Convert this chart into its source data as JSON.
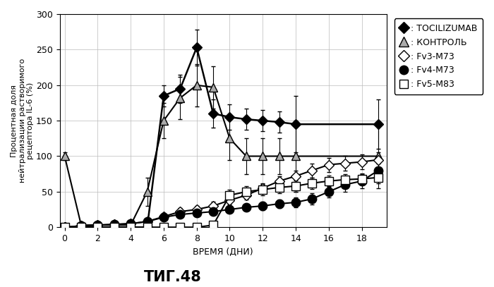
{
  "title": "ΤИГ.48",
  "xlabel": "ВРЕМЯ (ДНИ)",
  "ylabel": "Процентная доля\nнейтрализации растворимого\nрецептора IL-6 (%)",
  "xlim": [
    -0.3,
    19.5
  ],
  "ylim": [
    0,
    300
  ],
  "yticks": [
    0,
    50,
    100,
    150,
    200,
    250,
    300
  ],
  "xticks": [
    0,
    2,
    4,
    6,
    8,
    10,
    12,
    14,
    16,
    18
  ],
  "series": [
    {
      "label": ": TOCILIZUMAB",
      "x": [
        0,
        1,
        2,
        3,
        4,
        5,
        6,
        7,
        8,
        9,
        10,
        11,
        12,
        13,
        14,
        19
      ],
      "y": [
        0,
        0,
        0,
        0,
        0,
        0,
        185,
        195,
        253,
        160,
        155,
        152,
        150,
        148,
        145,
        145
      ],
      "yerr": [
        2,
        2,
        2,
        2,
        2,
        2,
        15,
        20,
        25,
        20,
        18,
        15,
        15,
        15,
        40,
        35
      ],
      "color": "#000000",
      "marker": "D",
      "markersize": 7,
      "markerfacecolor": "#000000",
      "linestyle": "-",
      "linewidth": 1.8
    },
    {
      "label": ": КОНТРОЛЬ",
      "x": [
        0,
        1,
        2,
        3,
        4,
        5,
        6,
        7,
        8,
        9,
        10,
        11,
        12,
        13,
        14,
        19
      ],
      "y": [
        100,
        3,
        3,
        3,
        3,
        50,
        150,
        182,
        200,
        197,
        125,
        100,
        100,
        100,
        100,
        100
      ],
      "yerr": [
        5,
        3,
        3,
        3,
        3,
        20,
        25,
        30,
        30,
        30,
        30,
        25,
        25,
        25,
        50,
        45
      ],
      "color": "#000000",
      "marker": "^",
      "markersize": 9,
      "markerfacecolor": "#aaaaaa",
      "linestyle": "-",
      "linewidth": 1.5
    },
    {
      "label": ": Fv3-M73",
      "x": [
        0,
        1,
        2,
        3,
        4,
        5,
        6,
        7,
        8,
        9,
        10,
        11,
        12,
        13,
        14,
        15,
        16,
        17,
        18,
        19
      ],
      "y": [
        0,
        2,
        3,
        4,
        5,
        8,
        15,
        22,
        25,
        30,
        38,
        45,
        55,
        65,
        72,
        80,
        88,
        90,
        92,
        95
      ],
      "yerr": [
        2,
        2,
        2,
        2,
        3,
        3,
        5,
        5,
        5,
        6,
        6,
        6,
        7,
        7,
        8,
        10,
        10,
        10,
        10,
        10
      ],
      "color": "#000000",
      "marker": "D",
      "markersize": 7,
      "markerfacecolor": "#ffffff",
      "linestyle": "-",
      "linewidth": 1.5
    },
    {
      "label": ": Fv4-M73",
      "x": [
        0,
        1,
        2,
        3,
        4,
        5,
        6,
        7,
        8,
        9,
        10,
        11,
        12,
        13,
        14,
        15,
        16,
        17,
        18,
        19
      ],
      "y": [
        0,
        2,
        3,
        4,
        5,
        8,
        14,
        18,
        20,
        22,
        25,
        28,
        30,
        33,
        35,
        40,
        50,
        60,
        65,
        80
      ],
      "yerr": [
        2,
        2,
        2,
        2,
        3,
        3,
        4,
        4,
        5,
        5,
        5,
        5,
        6,
        6,
        7,
        8,
        8,
        10,
        10,
        10
      ],
      "color": "#000000",
      "marker": "o",
      "markersize": 9,
      "markerfacecolor": "#000000",
      "linestyle": "-",
      "linewidth": 1.5
    },
    {
      "label": ": Fv5-M83",
      "x": [
        0,
        1,
        2,
        3,
        4,
        5,
        6,
        7,
        8,
        9,
        10,
        11,
        12,
        13,
        14,
        15,
        16,
        17,
        18,
        19
      ],
      "y": [
        0,
        0,
        0,
        0,
        0,
        0,
        0,
        0,
        0,
        3,
        45,
        50,
        53,
        56,
        58,
        62,
        65,
        67,
        68,
        70
      ],
      "yerr": [
        1,
        1,
        1,
        1,
        1,
        1,
        2,
        2,
        2,
        3,
        8,
        8,
        8,
        8,
        8,
        8,
        8,
        8,
        8,
        8
      ],
      "color": "#000000",
      "marker": "s",
      "markersize": 8,
      "markerfacecolor": "#ffffff",
      "linestyle": "-",
      "linewidth": 1.5
    }
  ],
  "legend_labels": [
    ": TOCILIZUMAB",
    ": КОНТРОЛЬ",
    ": Fv3-M73",
    ": Fv4-M73",
    ": Fv5-M83"
  ],
  "legend_markers": [
    "D",
    "^",
    "D",
    "o",
    "s"
  ],
  "legend_mfc": [
    "#000000",
    "#aaaaaa",
    "#ffffff",
    "#000000",
    "#ffffff"
  ],
  "bg_color": "#ffffff",
  "grid_color": "#bbbbbb"
}
